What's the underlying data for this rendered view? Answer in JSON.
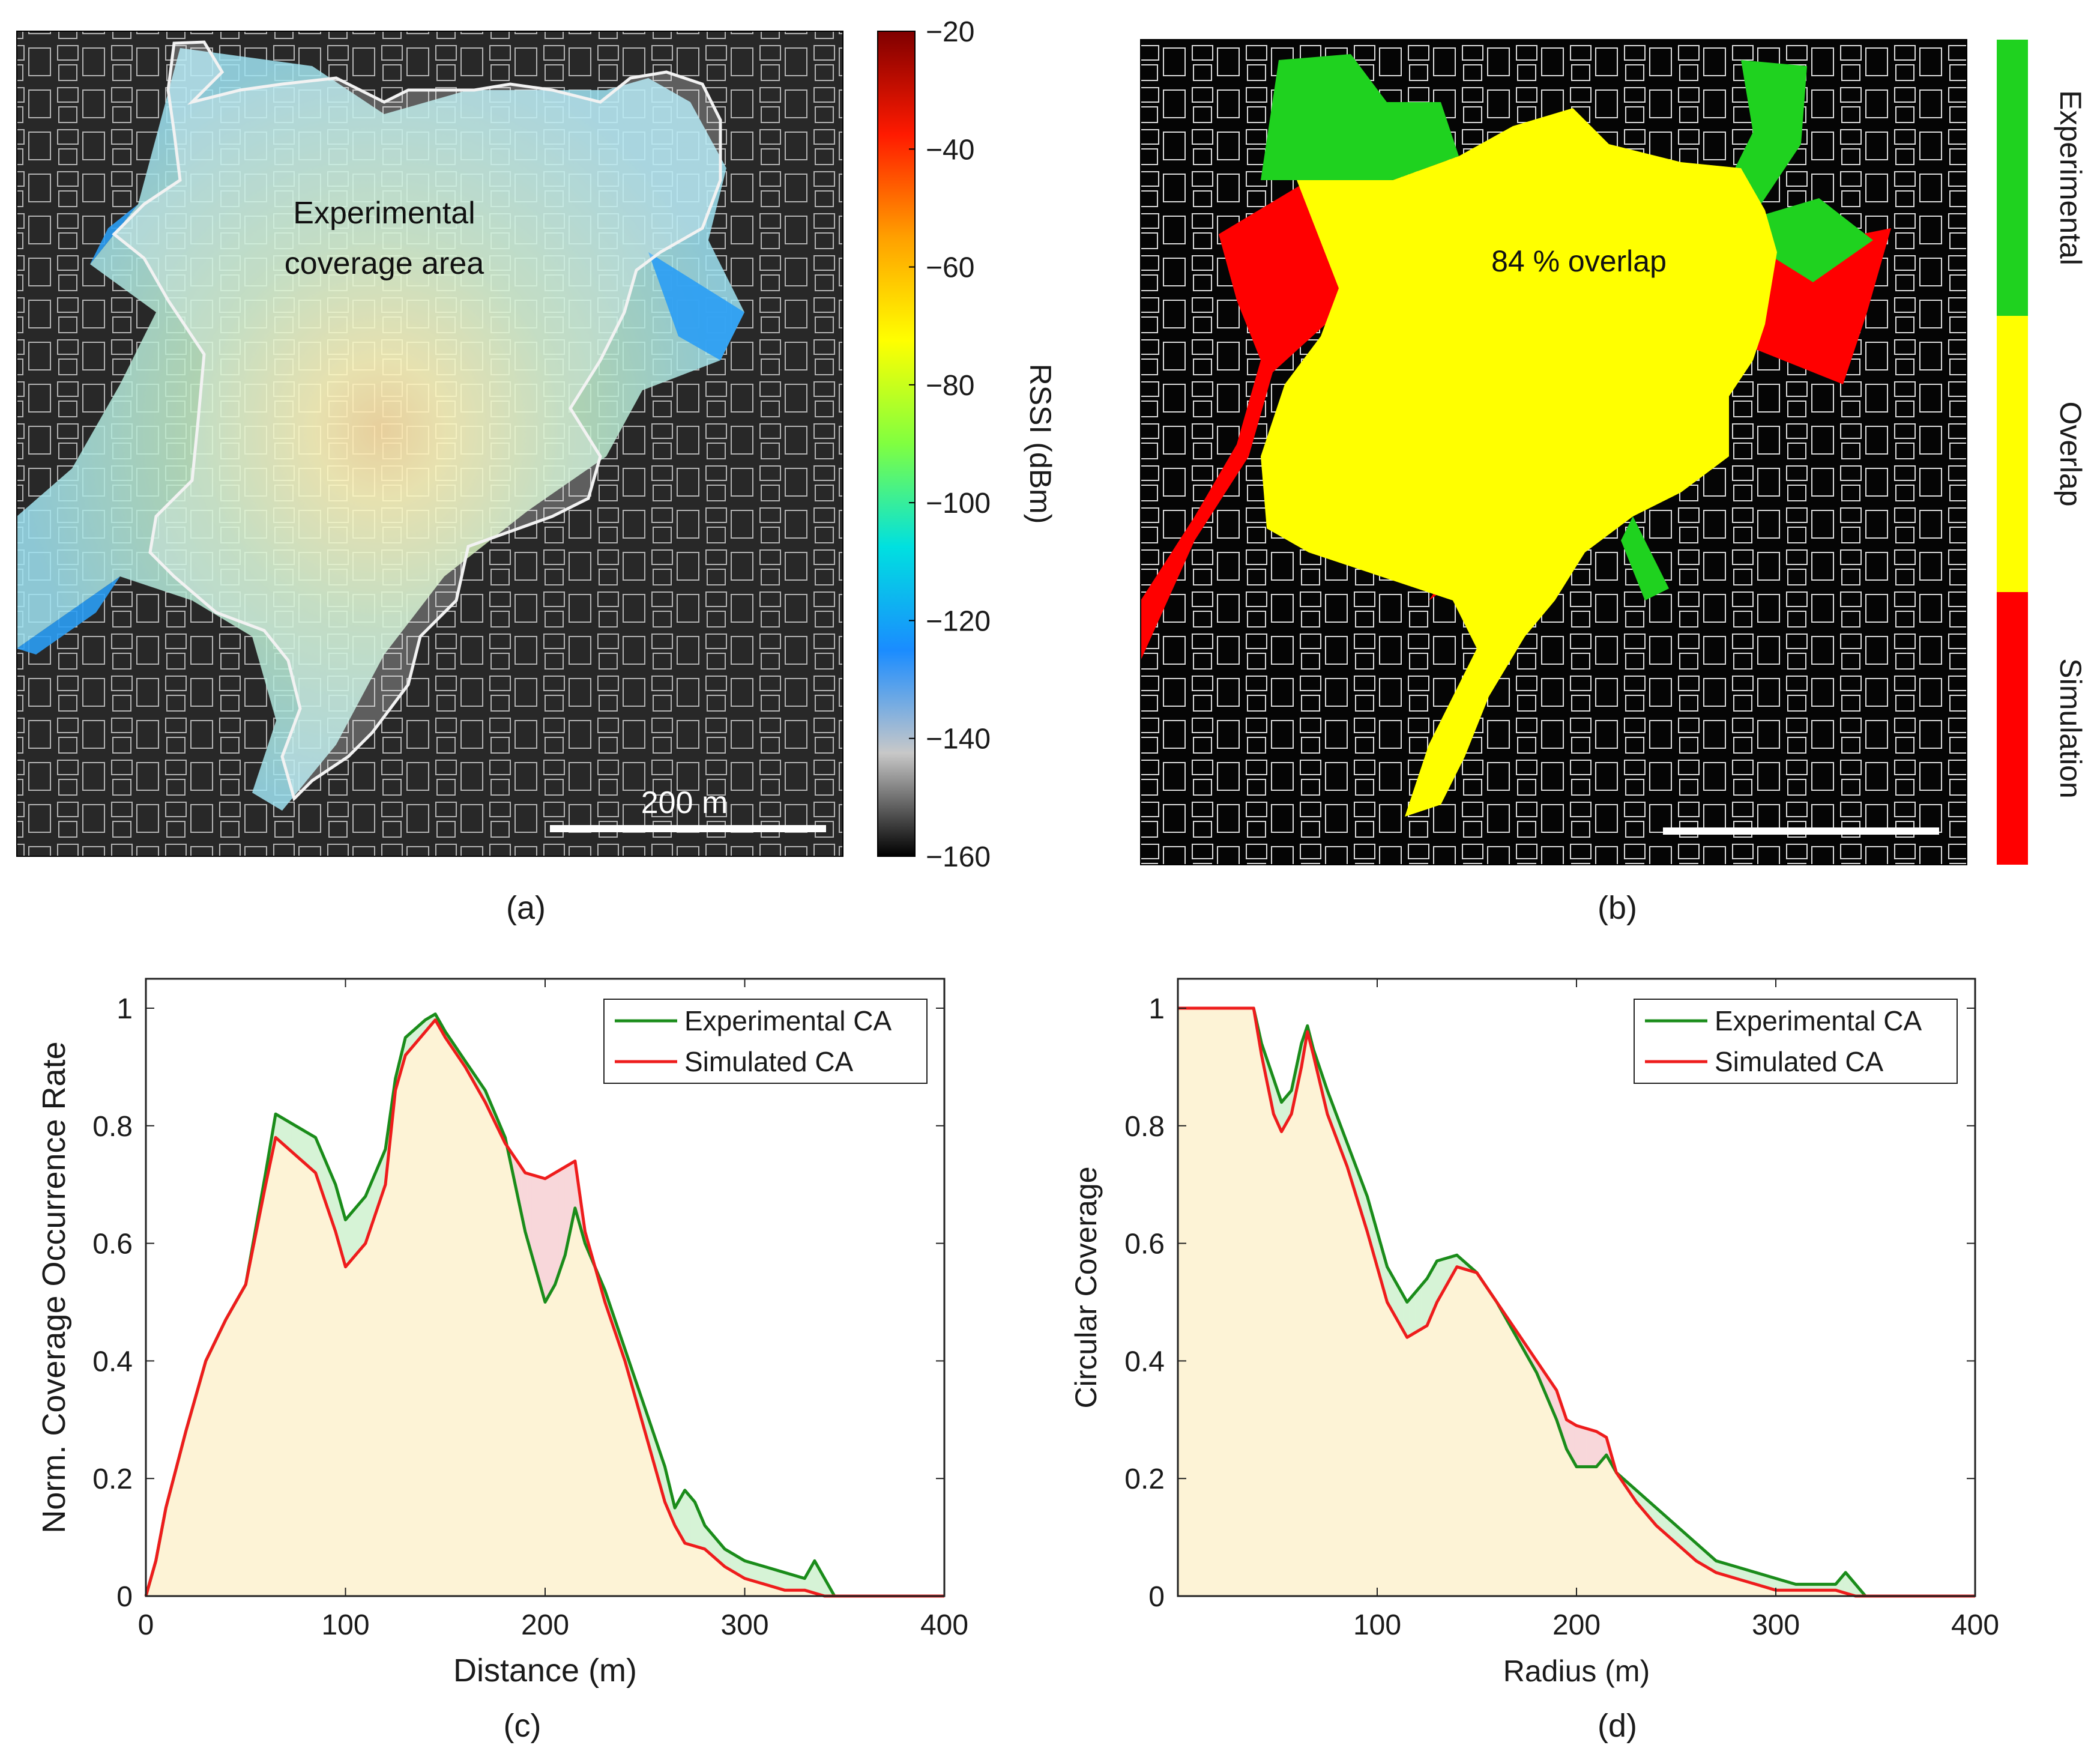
{
  "panels": {
    "a": {
      "label": "(a)",
      "annotation": [
        "Experimental",
        "coverage area"
      ],
      "scalebar": "200 m",
      "colorbar": {
        "label": "RSSI (dBm)",
        "ticks": [
          "-20",
          "-40",
          "-60",
          "-80",
          "-100",
          "-120",
          "-140",
          "-160"
        ],
        "range": [
          -160,
          -20
        ],
        "colors": [
          "#7f0000",
          "#ff1a00",
          "#ffa000",
          "#ffff00",
          "#80ff40",
          "#00e0e0",
          "#1a8cff",
          "#c8c8c8",
          "#000000"
        ]
      }
    },
    "b": {
      "label": "(b)",
      "annotation": "84 % overlap",
      "legend": [
        {
          "label": "Experimental",
          "color": "#1fd21f"
        },
        {
          "label": "Overlap",
          "color": "#ffff00"
        },
        {
          "label": "Simulation",
          "color": "#ff0000"
        }
      ]
    },
    "c": {
      "label": "(c)"
    },
    "d": {
      "label": "(d)"
    }
  },
  "chart_data": [
    {
      "panel": "c",
      "type": "line",
      "title": "",
      "xlabel": "Distance (m)",
      "ylabel": "Norm. Coverage Occurrence Rate",
      "xlim": [
        0,
        400
      ],
      "ylim": [
        0,
        1.05
      ],
      "xticks": [
        0,
        100,
        200,
        300,
        400
      ],
      "yticks": [
        0,
        0.2,
        0.4,
        0.6,
        0.8,
        1
      ],
      "ytick_labels": [
        "0",
        "0.2",
        "0.4",
        "0.6",
        "0.8",
        "1"
      ],
      "grid": false,
      "legend_position": "top-right",
      "series": [
        {
          "name": "Experimental CA",
          "color": "#1a8c1a",
          "x": [
            0,
            5,
            10,
            20,
            30,
            40,
            50,
            60,
            65,
            75,
            85,
            95,
            100,
            110,
            120,
            125,
            130,
            140,
            145,
            150,
            160,
            170,
            180,
            190,
            200,
            205,
            210,
            215,
            220,
            230,
            240,
            250,
            260,
            265,
            270,
            275,
            280,
            290,
            300,
            310,
            320,
            330,
            335,
            340,
            345,
            350,
            400
          ],
          "y": [
            0,
            0.06,
            0.15,
            0.28,
            0.4,
            0.47,
            0.53,
            0.72,
            0.82,
            0.8,
            0.78,
            0.7,
            0.64,
            0.68,
            0.76,
            0.88,
            0.95,
            0.98,
            0.99,
            0.96,
            0.91,
            0.86,
            0.78,
            0.62,
            0.5,
            0.53,
            0.58,
            0.66,
            0.6,
            0.52,
            0.42,
            0.32,
            0.22,
            0.15,
            0.18,
            0.16,
            0.12,
            0.08,
            0.06,
            0.05,
            0.04,
            0.03,
            0.06,
            0.03,
            0,
            0,
            0
          ]
        },
        {
          "name": "Simulated CA",
          "color": "#ee1c1c",
          "x": [
            0,
            5,
            10,
            20,
            30,
            40,
            50,
            60,
            65,
            75,
            85,
            95,
            100,
            110,
            120,
            125,
            130,
            140,
            145,
            150,
            160,
            170,
            180,
            190,
            200,
            210,
            215,
            220,
            230,
            240,
            250,
            260,
            265,
            270,
            280,
            290,
            300,
            310,
            320,
            330,
            340,
            345,
            350,
            400
          ],
          "y": [
            0,
            0.06,
            0.15,
            0.28,
            0.4,
            0.47,
            0.53,
            0.7,
            0.78,
            0.75,
            0.72,
            0.62,
            0.56,
            0.6,
            0.7,
            0.86,
            0.92,
            0.96,
            0.98,
            0.95,
            0.9,
            0.84,
            0.77,
            0.72,
            0.71,
            0.73,
            0.74,
            0.62,
            0.5,
            0.4,
            0.28,
            0.16,
            0.12,
            0.09,
            0.08,
            0.05,
            0.03,
            0.02,
            0.01,
            0.01,
            0,
            0,
            0,
            0
          ]
        }
      ]
    },
    {
      "panel": "d",
      "type": "line",
      "title": "",
      "xlabel": "Radius (m)",
      "ylabel": "Circular Coverage",
      "xlim": [
        0,
        400
      ],
      "ylim": [
        0,
        1.05
      ],
      "xticks": [
        100,
        200,
        300,
        400
      ],
      "yticks": [
        0,
        0.2,
        0.4,
        0.6,
        0.8,
        1
      ],
      "ytick_labels": [
        "0",
        "0.2",
        "0.4",
        "0.6",
        "0.8",
        "1"
      ],
      "grid": false,
      "legend_position": "top-right",
      "series": [
        {
          "name": "Experimental CA",
          "color": "#1a8c1a",
          "x": [
            0,
            35,
            38,
            42,
            48,
            52,
            57,
            62,
            65,
            68,
            75,
            85,
            95,
            105,
            115,
            125,
            130,
            140,
            150,
            160,
            170,
            180,
            190,
            195,
            200,
            210,
            215,
            220,
            230,
            240,
            250,
            260,
            270,
            280,
            290,
            300,
            310,
            320,
            330,
            335,
            340,
            345,
            400
          ],
          "y": [
            1,
            1,
            1,
            0.94,
            0.88,
            0.84,
            0.86,
            0.94,
            0.97,
            0.93,
            0.86,
            0.77,
            0.68,
            0.56,
            0.5,
            0.54,
            0.57,
            0.58,
            0.55,
            0.5,
            0.44,
            0.38,
            0.3,
            0.25,
            0.22,
            0.22,
            0.24,
            0.21,
            0.18,
            0.15,
            0.12,
            0.09,
            0.06,
            0.05,
            0.04,
            0.03,
            0.02,
            0.02,
            0.02,
            0.04,
            0.02,
            0,
            0
          ]
        },
        {
          "name": "Simulated CA",
          "color": "#ee1c1c",
          "x": [
            0,
            35,
            38,
            42,
            48,
            52,
            57,
            62,
            65,
            68,
            75,
            85,
            95,
            105,
            115,
            125,
            130,
            140,
            150,
            160,
            170,
            180,
            190,
            195,
            200,
            210,
            215,
            220,
            230,
            240,
            250,
            260,
            270,
            280,
            290,
            300,
            310,
            320,
            330,
            340,
            345,
            400
          ],
          "y": [
            1,
            1,
            1,
            0.92,
            0.82,
            0.79,
            0.82,
            0.9,
            0.96,
            0.92,
            0.82,
            0.73,
            0.62,
            0.5,
            0.44,
            0.46,
            0.5,
            0.56,
            0.55,
            0.5,
            0.45,
            0.4,
            0.35,
            0.3,
            0.29,
            0.28,
            0.27,
            0.21,
            0.16,
            0.12,
            0.09,
            0.06,
            0.04,
            0.03,
            0.02,
            0.01,
            0.01,
            0.01,
            0.01,
            0,
            0,
            0
          ]
        }
      ]
    }
  ]
}
